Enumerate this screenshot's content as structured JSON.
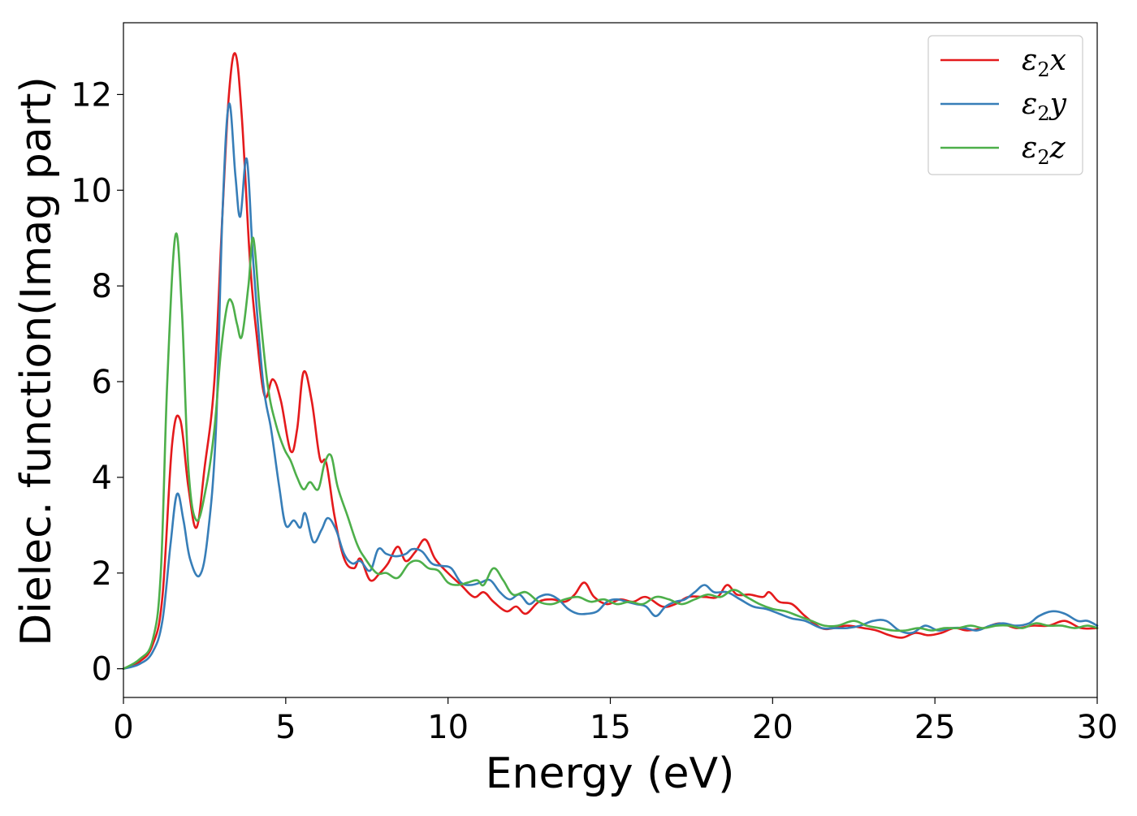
{
  "chart_data": {
    "type": "line",
    "title": "",
    "xlabel": "Energy (eV)",
    "ylabel": "Dielec. function(Imag part)",
    "xlim": [
      0,
      30
    ],
    "ylim": [
      -0.6,
      13.5
    ],
    "xticks": [
      0,
      5,
      10,
      15,
      20,
      25,
      30
    ],
    "yticks": [
      0,
      2,
      4,
      6,
      8,
      10,
      12
    ],
    "grid": false,
    "legend_position": "top-right",
    "series": [
      {
        "name": "ε2x",
        "label_base": "ε",
        "label_sub": "2",
        "label_var": "x",
        "color": "#e41a1c",
        "points": [
          [
            0,
            0
          ],
          [
            0.5,
            0.15
          ],
          [
            0.9,
            0.5
          ],
          [
            1.2,
            1.5
          ],
          [
            1.5,
            4.7
          ],
          [
            1.75,
            5.2
          ],
          [
            2.0,
            3.8
          ],
          [
            2.25,
            2.95
          ],
          [
            2.5,
            4.2
          ],
          [
            2.8,
            6.0
          ],
          [
            3.05,
            9.5
          ],
          [
            3.25,
            12.0
          ],
          [
            3.45,
            12.85
          ],
          [
            3.65,
            11.5
          ],
          [
            3.9,
            8.5
          ],
          [
            4.1,
            7.0
          ],
          [
            4.35,
            5.7
          ],
          [
            4.6,
            6.05
          ],
          [
            4.85,
            5.6
          ],
          [
            5.15,
            4.55
          ],
          [
            5.35,
            5.0
          ],
          [
            5.55,
            6.2
          ],
          [
            5.8,
            5.6
          ],
          [
            6.05,
            4.4
          ],
          [
            6.25,
            4.3
          ],
          [
            6.5,
            3.2
          ],
          [
            6.8,
            2.3
          ],
          [
            7.1,
            2.1
          ],
          [
            7.3,
            2.3
          ],
          [
            7.6,
            1.85
          ],
          [
            7.9,
            2.0
          ],
          [
            8.15,
            2.2
          ],
          [
            8.45,
            2.55
          ],
          [
            8.7,
            2.25
          ],
          [
            9.0,
            2.45
          ],
          [
            9.3,
            2.7
          ],
          [
            9.6,
            2.3
          ],
          [
            10.0,
            2.0
          ],
          [
            10.4,
            1.75
          ],
          [
            10.8,
            1.5
          ],
          [
            11.1,
            1.6
          ],
          [
            11.4,
            1.4
          ],
          [
            11.8,
            1.2
          ],
          [
            12.1,
            1.3
          ],
          [
            12.4,
            1.15
          ],
          [
            12.8,
            1.4
          ],
          [
            13.2,
            1.45
          ],
          [
            13.6,
            1.4
          ],
          [
            13.9,
            1.55
          ],
          [
            14.2,
            1.8
          ],
          [
            14.5,
            1.5
          ],
          [
            14.9,
            1.35
          ],
          [
            15.3,
            1.45
          ],
          [
            15.7,
            1.4
          ],
          [
            16.1,
            1.5
          ],
          [
            16.6,
            1.3
          ],
          [
            17.0,
            1.35
          ],
          [
            17.4,
            1.5
          ],
          [
            17.9,
            1.5
          ],
          [
            18.3,
            1.5
          ],
          [
            18.6,
            1.75
          ],
          [
            18.9,
            1.55
          ],
          [
            19.3,
            1.55
          ],
          [
            19.7,
            1.5
          ],
          [
            19.9,
            1.6
          ],
          [
            20.2,
            1.4
          ],
          [
            20.6,
            1.35
          ],
          [
            21.0,
            1.1
          ],
          [
            21.5,
            0.85
          ],
          [
            21.9,
            0.85
          ],
          [
            22.3,
            0.9
          ],
          [
            22.8,
            0.85
          ],
          [
            23.2,
            0.8
          ],
          [
            23.6,
            0.7
          ],
          [
            24.0,
            0.65
          ],
          [
            24.4,
            0.75
          ],
          [
            24.8,
            0.7
          ],
          [
            25.2,
            0.75
          ],
          [
            25.6,
            0.85
          ],
          [
            26.0,
            0.8
          ],
          [
            26.5,
            0.85
          ],
          [
            27.0,
            0.95
          ],
          [
            27.5,
            0.85
          ],
          [
            28.0,
            0.9
          ],
          [
            28.5,
            0.9
          ],
          [
            29.0,
            1.0
          ],
          [
            29.5,
            0.85
          ],
          [
            30.0,
            0.85
          ]
        ]
      },
      {
        "name": "ε2y",
        "label_base": "ε",
        "label_sub": "2",
        "label_var": "y",
        "color": "#377eb8",
        "points": [
          [
            0,
            0
          ],
          [
            0.5,
            0.1
          ],
          [
            0.9,
            0.35
          ],
          [
            1.2,
            1.0
          ],
          [
            1.45,
            2.6
          ],
          [
            1.65,
            3.65
          ],
          [
            1.85,
            3.1
          ],
          [
            2.05,
            2.3
          ],
          [
            2.35,
            1.95
          ],
          [
            2.6,
            2.8
          ],
          [
            2.85,
            5.0
          ],
          [
            3.05,
            9.5
          ],
          [
            3.25,
            11.8
          ],
          [
            3.45,
            10.3
          ],
          [
            3.6,
            9.45
          ],
          [
            3.8,
            10.65
          ],
          [
            4.0,
            8.5
          ],
          [
            4.3,
            6.0
          ],
          [
            4.55,
            5.0
          ],
          [
            4.8,
            3.8
          ],
          [
            5.0,
            3.0
          ],
          [
            5.25,
            3.1
          ],
          [
            5.45,
            2.95
          ],
          [
            5.6,
            3.25
          ],
          [
            5.85,
            2.65
          ],
          [
            6.1,
            2.9
          ],
          [
            6.3,
            3.15
          ],
          [
            6.55,
            2.9
          ],
          [
            6.8,
            2.4
          ],
          [
            7.05,
            2.2
          ],
          [
            7.3,
            2.25
          ],
          [
            7.6,
            2.05
          ],
          [
            7.85,
            2.5
          ],
          [
            8.1,
            2.4
          ],
          [
            8.4,
            2.35
          ],
          [
            8.7,
            2.4
          ],
          [
            8.9,
            2.5
          ],
          [
            9.2,
            2.45
          ],
          [
            9.5,
            2.2
          ],
          [
            9.8,
            2.15
          ],
          [
            10.1,
            2.1
          ],
          [
            10.4,
            1.8
          ],
          [
            10.7,
            1.75
          ],
          [
            11.0,
            1.8
          ],
          [
            11.3,
            1.85
          ],
          [
            11.6,
            1.6
          ],
          [
            11.9,
            1.45
          ],
          [
            12.2,
            1.55
          ],
          [
            12.5,
            1.35
          ],
          [
            12.8,
            1.5
          ],
          [
            13.1,
            1.55
          ],
          [
            13.4,
            1.45
          ],
          [
            13.7,
            1.25
          ],
          [
            14.0,
            1.15
          ],
          [
            14.3,
            1.15
          ],
          [
            14.6,
            1.2
          ],
          [
            14.9,
            1.4
          ],
          [
            15.2,
            1.45
          ],
          [
            15.5,
            1.4
          ],
          [
            15.8,
            1.35
          ],
          [
            16.1,
            1.3
          ],
          [
            16.4,
            1.1
          ],
          [
            16.7,
            1.3
          ],
          [
            17.0,
            1.4
          ],
          [
            17.3,
            1.45
          ],
          [
            17.6,
            1.6
          ],
          [
            17.9,
            1.75
          ],
          [
            18.2,
            1.6
          ],
          [
            18.6,
            1.6
          ],
          [
            19.0,
            1.45
          ],
          [
            19.4,
            1.3
          ],
          [
            19.8,
            1.25
          ],
          [
            20.2,
            1.15
          ],
          [
            20.6,
            1.05
          ],
          [
            21.0,
            1.0
          ],
          [
            21.5,
            0.85
          ],
          [
            21.9,
            0.85
          ],
          [
            22.3,
            0.85
          ],
          [
            22.7,
            0.9
          ],
          [
            23.1,
            1.0
          ],
          [
            23.5,
            1.0
          ],
          [
            23.9,
            0.8
          ],
          [
            24.3,
            0.75
          ],
          [
            24.7,
            0.9
          ],
          [
            25.1,
            0.8
          ],
          [
            25.5,
            0.85
          ],
          [
            25.9,
            0.85
          ],
          [
            26.3,
            0.8
          ],
          [
            26.7,
            0.9
          ],
          [
            27.1,
            0.95
          ],
          [
            27.5,
            0.9
          ],
          [
            27.9,
            0.95
          ],
          [
            28.2,
            1.1
          ],
          [
            28.6,
            1.2
          ],
          [
            29.0,
            1.15
          ],
          [
            29.4,
            1.0
          ],
          [
            29.7,
            1.0
          ],
          [
            30.0,
            0.9
          ]
        ]
      },
      {
        "name": "ε2z",
        "label_base": "ε",
        "label_sub": "2",
        "label_var": "z",
        "color": "#4daf4a",
        "points": [
          [
            0,
            0
          ],
          [
            0.5,
            0.2
          ],
          [
            0.9,
            0.6
          ],
          [
            1.15,
            2.0
          ],
          [
            1.35,
            6.0
          ],
          [
            1.6,
            9.05
          ],
          [
            1.8,
            7.5
          ],
          [
            2.0,
            4.2
          ],
          [
            2.25,
            3.1
          ],
          [
            2.55,
            3.8
          ],
          [
            2.8,
            5.0
          ],
          [
            3.0,
            6.6
          ],
          [
            3.2,
            7.6
          ],
          [
            3.35,
            7.65
          ],
          [
            3.5,
            7.2
          ],
          [
            3.65,
            6.95
          ],
          [
            3.85,
            8.0
          ],
          [
            4.0,
            9.0
          ],
          [
            4.2,
            7.5
          ],
          [
            4.45,
            5.9
          ],
          [
            4.7,
            5.1
          ],
          [
            4.95,
            4.6
          ],
          [
            5.15,
            4.35
          ],
          [
            5.35,
            4.0
          ],
          [
            5.55,
            3.75
          ],
          [
            5.75,
            3.9
          ],
          [
            6.0,
            3.75
          ],
          [
            6.2,
            4.3
          ],
          [
            6.4,
            4.45
          ],
          [
            6.6,
            3.8
          ],
          [
            6.9,
            3.2
          ],
          [
            7.2,
            2.6
          ],
          [
            7.45,
            2.3
          ],
          [
            7.8,
            2.0
          ],
          [
            8.1,
            2.0
          ],
          [
            8.45,
            1.9
          ],
          [
            8.8,
            2.2
          ],
          [
            9.1,
            2.25
          ],
          [
            9.4,
            2.1
          ],
          [
            9.7,
            2.05
          ],
          [
            10.0,
            1.8
          ],
          [
            10.3,
            1.75
          ],
          [
            10.6,
            1.8
          ],
          [
            10.9,
            1.85
          ],
          [
            11.1,
            1.75
          ],
          [
            11.4,
            2.1
          ],
          [
            11.7,
            1.85
          ],
          [
            12.0,
            1.55
          ],
          [
            12.4,
            1.6
          ],
          [
            12.8,
            1.4
          ],
          [
            13.2,
            1.35
          ],
          [
            13.6,
            1.45
          ],
          [
            14.0,
            1.5
          ],
          [
            14.4,
            1.4
          ],
          [
            14.8,
            1.45
          ],
          [
            15.2,
            1.35
          ],
          [
            15.6,
            1.4
          ],
          [
            16.0,
            1.35
          ],
          [
            16.4,
            1.5
          ],
          [
            16.8,
            1.45
          ],
          [
            17.2,
            1.35
          ],
          [
            17.6,
            1.45
          ],
          [
            18.0,
            1.55
          ],
          [
            18.4,
            1.5
          ],
          [
            18.8,
            1.65
          ],
          [
            19.2,
            1.5
          ],
          [
            19.6,
            1.35
          ],
          [
            20.0,
            1.25
          ],
          [
            20.4,
            1.2
          ],
          [
            20.8,
            1.1
          ],
          [
            21.2,
            1.0
          ],
          [
            21.6,
            0.9
          ],
          [
            22.0,
            0.9
          ],
          [
            22.5,
            1.0
          ],
          [
            22.9,
            0.9
          ],
          [
            23.3,
            0.85
          ],
          [
            23.7,
            0.8
          ],
          [
            24.1,
            0.8
          ],
          [
            24.5,
            0.85
          ],
          [
            24.9,
            0.8
          ],
          [
            25.3,
            0.85
          ],
          [
            25.7,
            0.85
          ],
          [
            26.1,
            0.9
          ],
          [
            26.5,
            0.85
          ],
          [
            26.9,
            0.9
          ],
          [
            27.3,
            0.9
          ],
          [
            27.7,
            0.85
          ],
          [
            28.1,
            0.95
          ],
          [
            28.5,
            0.9
          ],
          [
            28.9,
            0.9
          ],
          [
            29.3,
            0.85
          ],
          [
            29.7,
            0.9
          ],
          [
            30.0,
            0.85
          ]
        ]
      }
    ]
  }
}
